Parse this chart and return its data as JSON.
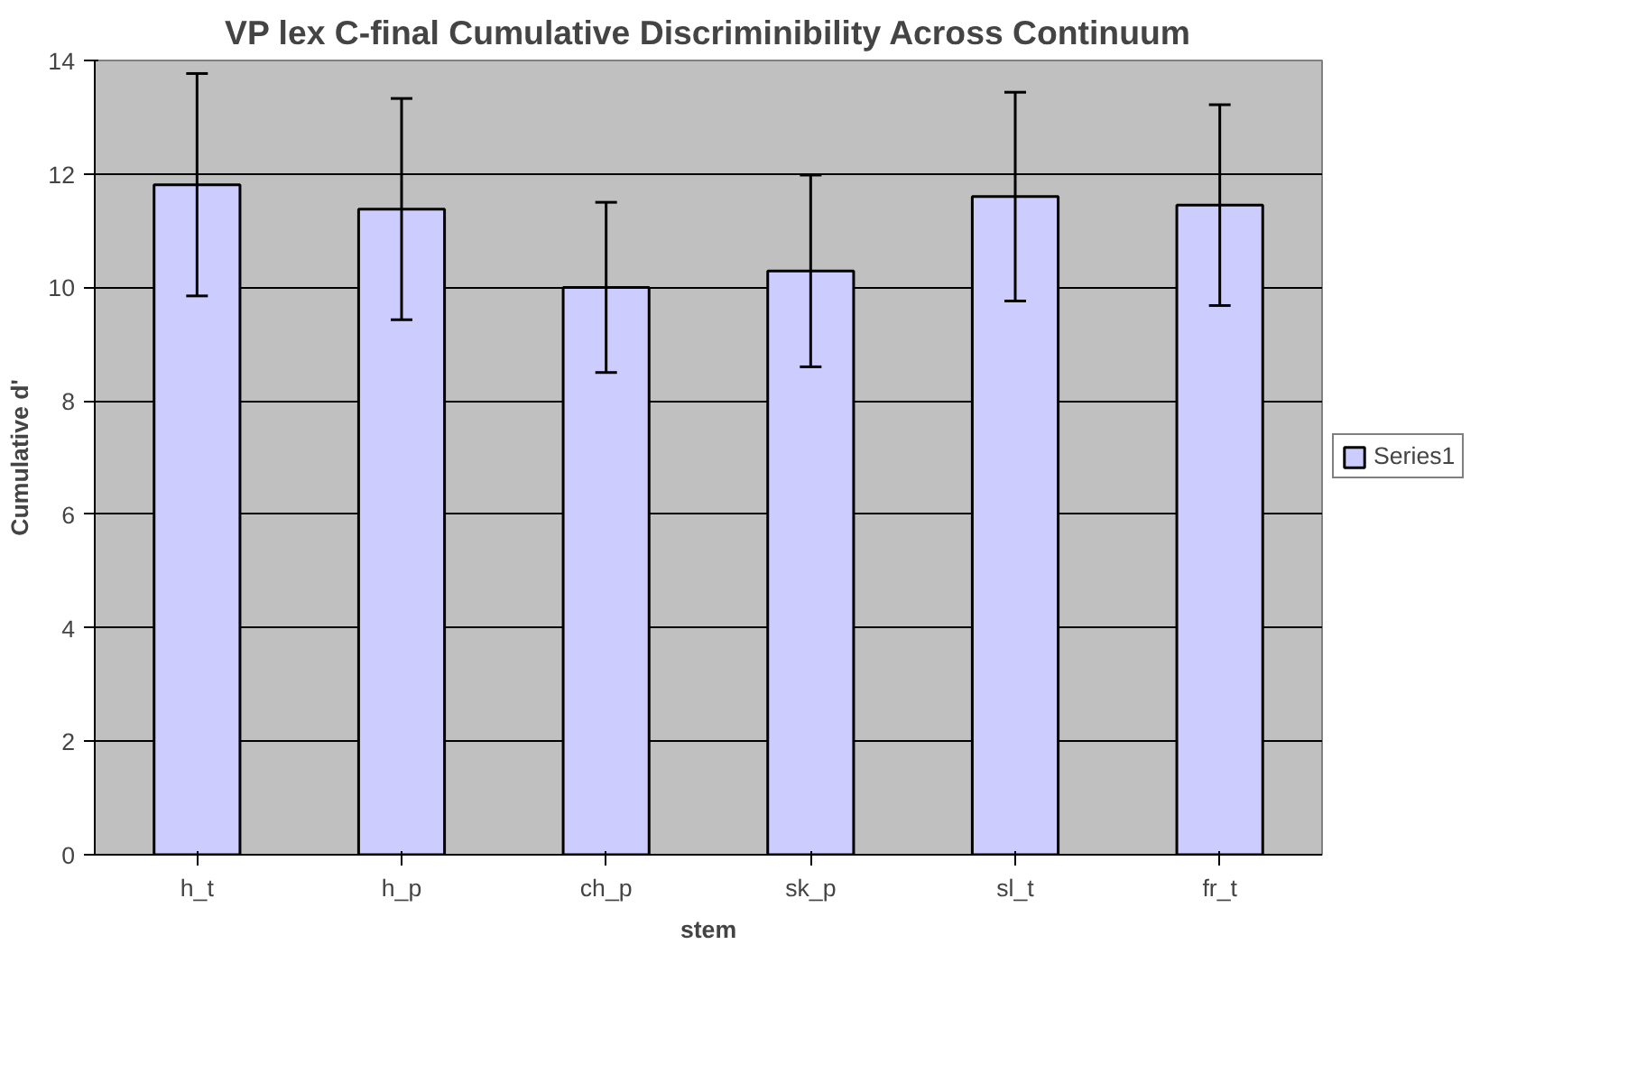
{
  "chart_data": {
    "type": "bar",
    "title": "VP lex C-final Cumulative Discriminibility Across Continuum",
    "xlabel": "stem",
    "ylabel": "Cumulative d'",
    "categories": [
      "h_t",
      "h_p",
      "ch_p",
      "sk_p",
      "sl_t",
      "fr_t"
    ],
    "series": [
      {
        "name": "Series1",
        "color": "#ccccff",
        "values": [
          11.81,
          11.38,
          10.0,
          10.29,
          11.6,
          11.45
        ],
        "errors": [
          1.96,
          1.95,
          1.5,
          1.69,
          1.84,
          1.77
        ]
      }
    ],
    "ylim": [
      0,
      14
    ],
    "yticks": [
      0,
      2,
      4,
      6,
      8,
      10,
      12,
      14
    ],
    "grid": "y",
    "legend": "right"
  }
}
